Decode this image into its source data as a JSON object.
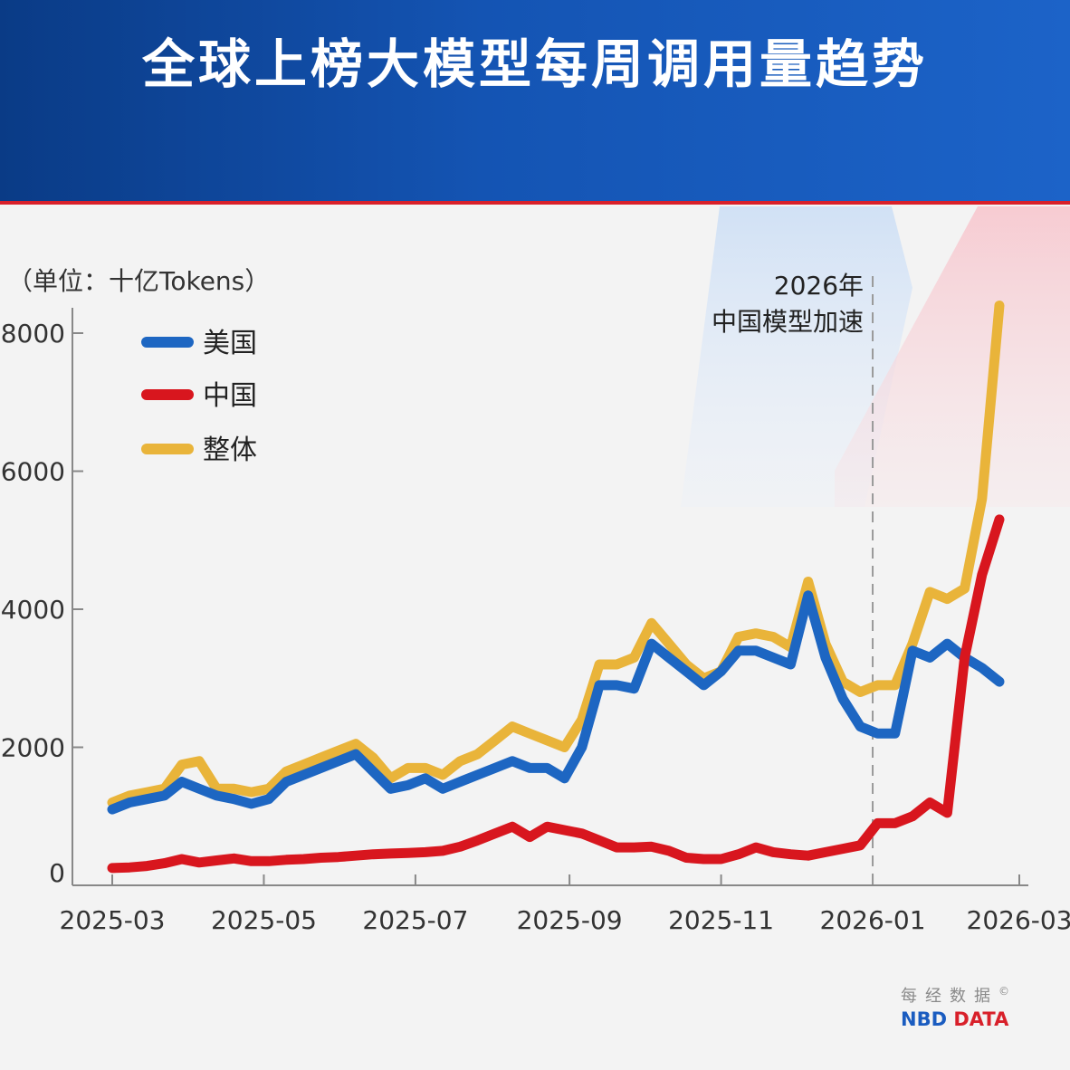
{
  "title": "全球上榜大模型每周调用量趋势",
  "chart_data": {
    "type": "line",
    "unit_label": "（单位：十亿Tokens）",
    "x_start": "2025-03-01",
    "x_end": "2026-03-01",
    "x_tick_labels": [
      "2025-03",
      "2025-05",
      "2025-07",
      "2025-09",
      "2025-11",
      "2026-01",
      "2026-03"
    ],
    "x_tick_dates": [
      "2025-03-01",
      "2025-05-01",
      "2025-07-01",
      "2025-09-01",
      "2025-11-01",
      "2026-01-01",
      "2026-03-01"
    ],
    "y_ticks": [
      0,
      2000,
      4000,
      6000,
      8000
    ],
    "ylim": [
      0,
      8500
    ],
    "legend_position": "top-left",
    "grid": false,
    "annotation": {
      "date": "2026-01-01",
      "lines": [
        "2026年",
        "中国模型加速"
      ]
    },
    "series": [
      {
        "name": "美国",
        "color": "#1d66c2",
        "points": [
          [
            "2025-03-01",
            1100
          ],
          [
            "2025-03-08",
            1200
          ],
          [
            "2025-03-15",
            1250
          ],
          [
            "2025-03-22",
            1300
          ],
          [
            "2025-03-29",
            1500
          ],
          [
            "2025-04-05",
            1400
          ],
          [
            "2025-04-12",
            1300
          ],
          [
            "2025-04-19",
            1250
          ],
          [
            "2025-04-26",
            1180
          ],
          [
            "2025-05-03",
            1250
          ],
          [
            "2025-05-10",
            1500
          ],
          [
            "2025-05-17",
            1600
          ],
          [
            "2025-05-24",
            1700
          ],
          [
            "2025-05-31",
            1800
          ],
          [
            "2025-06-07",
            1900
          ],
          [
            "2025-06-14",
            1650
          ],
          [
            "2025-06-21",
            1400
          ],
          [
            "2025-06-28",
            1450
          ],
          [
            "2025-07-05",
            1550
          ],
          [
            "2025-07-12",
            1400
          ],
          [
            "2025-07-19",
            1500
          ],
          [
            "2025-07-26",
            1600
          ],
          [
            "2025-08-02",
            1700
          ],
          [
            "2025-08-09",
            1800
          ],
          [
            "2025-08-16",
            1700
          ],
          [
            "2025-08-23",
            1700
          ],
          [
            "2025-08-30",
            1550
          ],
          [
            "2025-09-06",
            2000
          ],
          [
            "2025-09-13",
            2900
          ],
          [
            "2025-09-20",
            2900
          ],
          [
            "2025-09-27",
            2850
          ],
          [
            "2025-10-04",
            3500
          ],
          [
            "2025-10-11",
            3300
          ],
          [
            "2025-10-18",
            3100
          ],
          [
            "2025-10-25",
            2900
          ],
          [
            "2025-11-01",
            3100
          ],
          [
            "2025-11-08",
            3400
          ],
          [
            "2025-11-15",
            3400
          ],
          [
            "2025-11-22",
            3300
          ],
          [
            "2025-11-29",
            3200
          ],
          [
            "2025-12-06",
            4200
          ],
          [
            "2025-12-13",
            3300
          ],
          [
            "2025-12-20",
            2700
          ],
          [
            "2025-12-27",
            2300
          ],
          [
            "2026-01-03",
            2200
          ],
          [
            "2026-01-10",
            2200
          ],
          [
            "2026-01-17",
            3400
          ],
          [
            "2026-01-24",
            3300
          ],
          [
            "2026-01-31",
            3500
          ],
          [
            "2026-02-07",
            3300
          ],
          [
            "2026-02-14",
            3150
          ],
          [
            "2026-02-21",
            2950
          ]
        ]
      },
      {
        "name": "中国",
        "color": "#d8161e",
        "points": [
          [
            "2025-03-01",
            250
          ],
          [
            "2025-03-08",
            260
          ],
          [
            "2025-03-15",
            280
          ],
          [
            "2025-03-22",
            320
          ],
          [
            "2025-03-29",
            380
          ],
          [
            "2025-04-05",
            330
          ],
          [
            "2025-04-12",
            360
          ],
          [
            "2025-04-19",
            390
          ],
          [
            "2025-04-26",
            350
          ],
          [
            "2025-05-03",
            350
          ],
          [
            "2025-05-10",
            370
          ],
          [
            "2025-05-17",
            380
          ],
          [
            "2025-05-24",
            400
          ],
          [
            "2025-05-31",
            410
          ],
          [
            "2025-06-07",
            430
          ],
          [
            "2025-06-14",
            450
          ],
          [
            "2025-06-21",
            460
          ],
          [
            "2025-06-28",
            470
          ],
          [
            "2025-07-05",
            480
          ],
          [
            "2025-07-12",
            500
          ],
          [
            "2025-07-19",
            560
          ],
          [
            "2025-07-26",
            650
          ],
          [
            "2025-08-02",
            750
          ],
          [
            "2025-08-09",
            850
          ],
          [
            "2025-08-16",
            700
          ],
          [
            "2025-08-23",
            850
          ],
          [
            "2025-08-30",
            800
          ],
          [
            "2025-09-06",
            750
          ],
          [
            "2025-09-13",
            650
          ],
          [
            "2025-09-20",
            550
          ],
          [
            "2025-09-27",
            550
          ],
          [
            "2025-10-04",
            560
          ],
          [
            "2025-10-11",
            500
          ],
          [
            "2025-10-18",
            400
          ],
          [
            "2025-10-25",
            380
          ],
          [
            "2025-11-01",
            380
          ],
          [
            "2025-11-08",
            450
          ],
          [
            "2025-11-15",
            550
          ],
          [
            "2025-11-22",
            480
          ],
          [
            "2025-11-29",
            450
          ],
          [
            "2025-12-06",
            430
          ],
          [
            "2025-12-13",
            480
          ],
          [
            "2025-12-20",
            530
          ],
          [
            "2025-12-27",
            580
          ],
          [
            "2026-01-03",
            900
          ],
          [
            "2026-01-10",
            900
          ],
          [
            "2026-01-17",
            1000
          ],
          [
            "2026-01-24",
            1200
          ],
          [
            "2026-01-31",
            1050
          ],
          [
            "2026-02-07",
            3300
          ],
          [
            "2026-02-14",
            4500
          ],
          [
            "2026-02-21",
            5300
          ]
        ]
      },
      {
        "name": "整体",
        "color": "#e9b43a",
        "points": [
          [
            "2025-03-01",
            1200
          ],
          [
            "2025-03-08",
            1300
          ],
          [
            "2025-03-15",
            1350
          ],
          [
            "2025-03-22",
            1400
          ],
          [
            "2025-03-29",
            1750
          ],
          [
            "2025-04-05",
            1800
          ],
          [
            "2025-04-12",
            1400
          ],
          [
            "2025-04-19",
            1400
          ],
          [
            "2025-04-26",
            1350
          ],
          [
            "2025-05-03",
            1400
          ],
          [
            "2025-05-10",
            1650
          ],
          [
            "2025-05-17",
            1750
          ],
          [
            "2025-05-24",
            1850
          ],
          [
            "2025-05-31",
            1950
          ],
          [
            "2025-06-07",
            2050
          ],
          [
            "2025-06-14",
            1850
          ],
          [
            "2025-06-21",
            1550
          ],
          [
            "2025-06-28",
            1700
          ],
          [
            "2025-07-05",
            1700
          ],
          [
            "2025-07-12",
            1600
          ],
          [
            "2025-07-19",
            1800
          ],
          [
            "2025-07-26",
            1900
          ],
          [
            "2025-08-02",
            2100
          ],
          [
            "2025-08-09",
            2300
          ],
          [
            "2025-08-16",
            2200
          ],
          [
            "2025-08-23",
            2100
          ],
          [
            "2025-08-30",
            2000
          ],
          [
            "2025-09-06",
            2400
          ],
          [
            "2025-09-13",
            3200
          ],
          [
            "2025-09-20",
            3200
          ],
          [
            "2025-09-27",
            3300
          ],
          [
            "2025-10-04",
            3800
          ],
          [
            "2025-10-11",
            3500
          ],
          [
            "2025-10-18",
            3200
          ],
          [
            "2025-10-25",
            3000
          ],
          [
            "2025-11-01",
            3100
          ],
          [
            "2025-11-08",
            3600
          ],
          [
            "2025-11-15",
            3650
          ],
          [
            "2025-11-22",
            3600
          ],
          [
            "2025-11-29",
            3450
          ],
          [
            "2025-12-06",
            4400
          ],
          [
            "2025-12-13",
            3500
          ],
          [
            "2025-12-20",
            2950
          ],
          [
            "2025-12-27",
            2800
          ],
          [
            "2026-01-03",
            2900
          ],
          [
            "2026-01-10",
            2900
          ],
          [
            "2026-01-17",
            3500
          ],
          [
            "2026-01-24",
            4250
          ],
          [
            "2026-01-31",
            4150
          ],
          [
            "2026-02-07",
            4300
          ],
          [
            "2026-02-14",
            5600
          ],
          [
            "2026-02-21",
            8400
          ]
        ]
      }
    ]
  },
  "brand": {
    "cn": "每经数据",
    "copyright": "©",
    "en_left": "NBD",
    "en_right": "DATA"
  }
}
